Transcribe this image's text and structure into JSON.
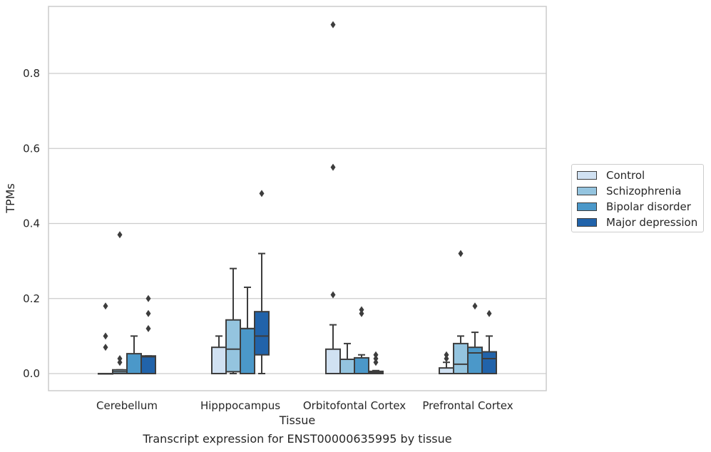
{
  "caption": "Transcript expression for ENST00000635995 by tissue",
  "chart_data": {
    "type": "boxplot",
    "xlabel": "Tissue",
    "ylabel": "TPMs",
    "ylim": [
      -0.045,
      0.98
    ],
    "yticks": [
      0.0,
      0.2,
      0.4,
      0.6,
      0.8
    ],
    "ytick_labels": [
      "0.0",
      "0.2",
      "0.4",
      "0.6",
      "0.8"
    ],
    "grid": "horizontal",
    "legend_position": "right",
    "categories": [
      "Cerebellum",
      "Hipppocampus",
      "Orbitofontal Cortex",
      "Prefrontal Cortex"
    ],
    "series": [
      {
        "name": "Control",
        "color": "#d0e1f2",
        "boxes": [
          {
            "q1": 0.0,
            "median": 0.0,
            "q3": 0.0,
            "whislo": 0.0,
            "whishi": 0.0,
            "fliers": [
              0.18,
              0.1,
              0.07
            ]
          },
          {
            "q1": 0.0,
            "median": 0.0,
            "q3": 0.07,
            "whislo": 0.0,
            "whishi": 0.1,
            "fliers": []
          },
          {
            "q1": 0.0,
            "median": 0.0,
            "q3": 0.065,
            "whislo": 0.0,
            "whishi": 0.13,
            "fliers": [
              0.21,
              0.55,
              0.93
            ]
          },
          {
            "q1": 0.0,
            "median": 0.0,
            "q3": 0.015,
            "whislo": 0.0,
            "whishi": 0.03,
            "fliers": [
              0.05,
              0.04
            ]
          }
        ]
      },
      {
        "name": "Schizophrenia",
        "color": "#94c4df",
        "boxes": [
          {
            "q1": 0.0,
            "median": 0.005,
            "q3": 0.01,
            "whislo": 0.0,
            "whishi": 0.01,
            "fliers": [
              0.04,
              0.03,
              0.37
            ]
          },
          {
            "q1": 0.005,
            "median": 0.065,
            "q3": 0.143,
            "whislo": 0.0,
            "whishi": 0.28,
            "fliers": []
          },
          {
            "q1": 0.0,
            "median": 0.0,
            "q3": 0.038,
            "whislo": 0.0,
            "whishi": 0.08,
            "fliers": []
          },
          {
            "q1": 0.0,
            "median": 0.025,
            "q3": 0.08,
            "whislo": 0.0,
            "whishi": 0.1,
            "fliers": [
              0.32
            ]
          }
        ]
      },
      {
        "name": "Bipolar disorder",
        "color": "#4b98c9",
        "boxes": [
          {
            "q1": 0.0,
            "median": 0.0,
            "q3": 0.053,
            "whislo": 0.0,
            "whishi": 0.1,
            "fliers": []
          },
          {
            "q1": 0.0,
            "median": 0.12,
            "q3": 0.12,
            "whislo": 0.0,
            "whishi": 0.23,
            "fliers": []
          },
          {
            "q1": 0.0,
            "median": 0.0,
            "q3": 0.042,
            "whislo": 0.0,
            "whishi": 0.05,
            "fliers": [
              0.17,
              0.16
            ]
          },
          {
            "q1": 0.0,
            "median": 0.055,
            "q3": 0.07,
            "whislo": 0.0,
            "whishi": 0.11,
            "fliers": [
              0.18
            ]
          }
        ]
      },
      {
        "name": "Major depression",
        "color": "#2163aa",
        "boxes": [
          {
            "q1": 0.0,
            "median": 0.045,
            "q3": 0.047,
            "whislo": 0.0,
            "whishi": 0.047,
            "fliers": [
              0.2,
              0.16,
              0.12
            ]
          },
          {
            "q1": 0.05,
            "median": 0.1,
            "q3": 0.165,
            "whislo": 0.0,
            "whishi": 0.32,
            "fliers": [
              0.48
            ]
          },
          {
            "q1": 0.0,
            "median": 0.003,
            "q3": 0.006,
            "whislo": 0.0,
            "whishi": 0.008,
            "fliers": [
              0.05,
              0.04,
              0.03
            ]
          },
          {
            "q1": 0.0,
            "median": 0.04,
            "q3": 0.058,
            "whislo": 0.0,
            "whishi": 0.1,
            "fliers": [
              0.16
            ]
          }
        ]
      }
    ]
  }
}
